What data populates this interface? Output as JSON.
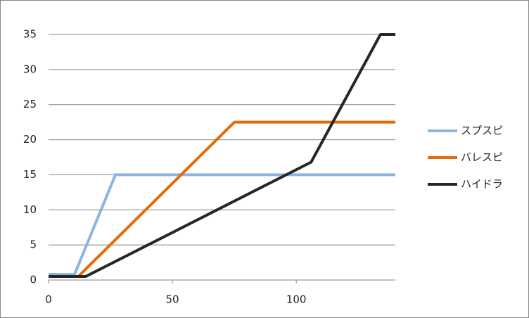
{
  "chart_data": {
    "type": "line",
    "xlim": [
      0,
      140
    ],
    "xticks": [
      0,
      50,
      100
    ],
    "ylim": [
      0,
      35
    ],
    "yticks": [
      0,
      5,
      10,
      15,
      20,
      25,
      30,
      35
    ],
    "grid": true,
    "legend": "right",
    "series": [
      {
        "name": "スプスピ",
        "color": "#8eb4e3",
        "x": [
          0,
          10.5,
          27,
          140
        ],
        "values": [
          0.8,
          0.8,
          15,
          15
        ]
      },
      {
        "name": "バレスピ",
        "color": "#e36c09",
        "x": [
          0,
          12,
          75,
          140
        ],
        "values": [
          0.5,
          0.5,
          22.5,
          22.5
        ]
      },
      {
        "name": "ハイドラ",
        "color": "#262626",
        "x": [
          0,
          15,
          106,
          134,
          140
        ],
        "values": [
          0.5,
          0.5,
          16.8,
          35,
          35
        ]
      }
    ]
  }
}
